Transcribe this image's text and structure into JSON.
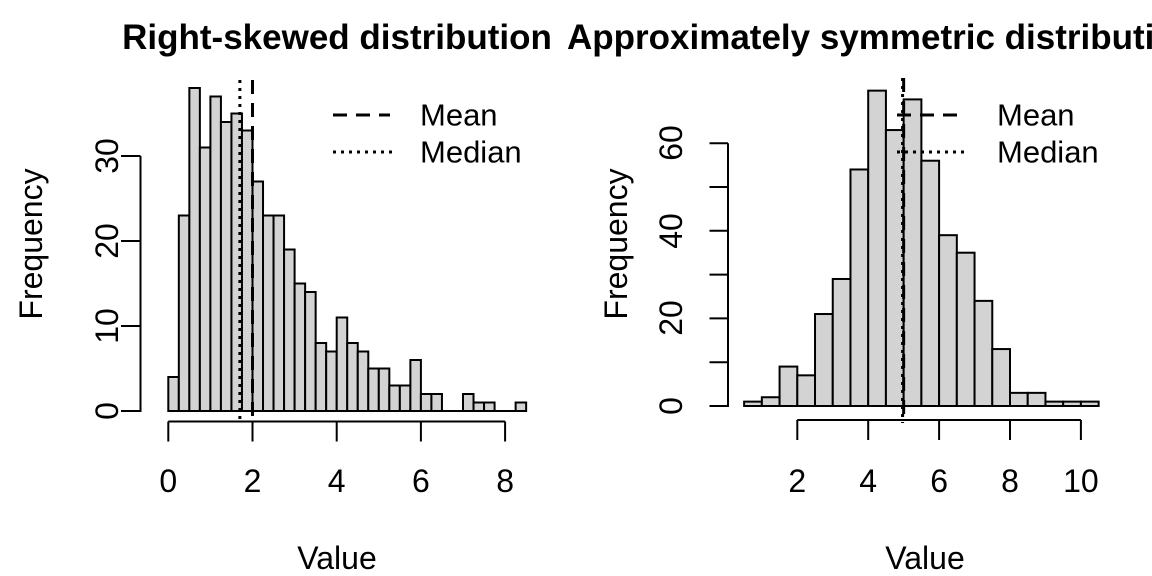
{
  "background_color": "#ffffff",
  "text_color": "#000000",
  "chart_data": [
    {
      "type": "bar",
      "subtype": "histogram",
      "title": "Right-skewed distribution",
      "xlabel": "Value",
      "ylabel": "Frequency",
      "bar_fill": "#d3d3d3",
      "bar_border": "#000000",
      "bin_start": 0,
      "bin_width": 0.25,
      "counts": [
        4,
        23,
        38,
        31,
        37,
        34,
        35,
        33,
        27,
        23,
        23,
        19,
        15,
        14,
        8,
        7,
        11,
        8,
        7,
        5,
        5,
        3,
        3,
        6,
        2,
        2,
        0,
        0,
        2,
        1,
        1,
        0,
        0,
        1
      ],
      "x_ticks": [
        0,
        2,
        4,
        6,
        8
      ],
      "y_ticks": [
        0,
        10,
        20,
        30
      ],
      "y_minor_ticks": [],
      "xlim": [
        0,
        8.5
      ],
      "ylim": [
        0,
        38
      ],
      "mean": 2.0,
      "median": 1.7,
      "mean_line_style": "dashed",
      "median_line_style": "dotted",
      "legend": {
        "mean_label": "Mean",
        "median_label": "Median"
      }
    },
    {
      "type": "bar",
      "subtype": "histogram",
      "title": "Approximately symmetric distribution",
      "xlabel": "Value",
      "ylabel": "Frequency",
      "bar_fill": "#d3d3d3",
      "bar_border": "#000000",
      "bin_start": 0.5,
      "bin_width": 0.5,
      "counts": [
        1,
        2,
        9,
        7,
        21,
        29,
        54,
        72,
        63,
        70,
        56,
        39,
        35,
        24,
        13,
        3,
        3,
        1,
        1,
        1
      ],
      "x_ticks": [
        2,
        4,
        6,
        8,
        10
      ],
      "y_ticks": [
        0,
        20,
        40,
        60
      ],
      "y_minor_ticks": [
        10,
        30,
        50
      ],
      "xlim": [
        0.5,
        10.5
      ],
      "ylim": [
        0,
        72
      ],
      "mean": 5.0,
      "median": 4.97,
      "mean_line_style": "dashed",
      "median_line_style": "dotted",
      "legend": {
        "mean_label": "Mean",
        "median_label": "Median"
      }
    }
  ]
}
